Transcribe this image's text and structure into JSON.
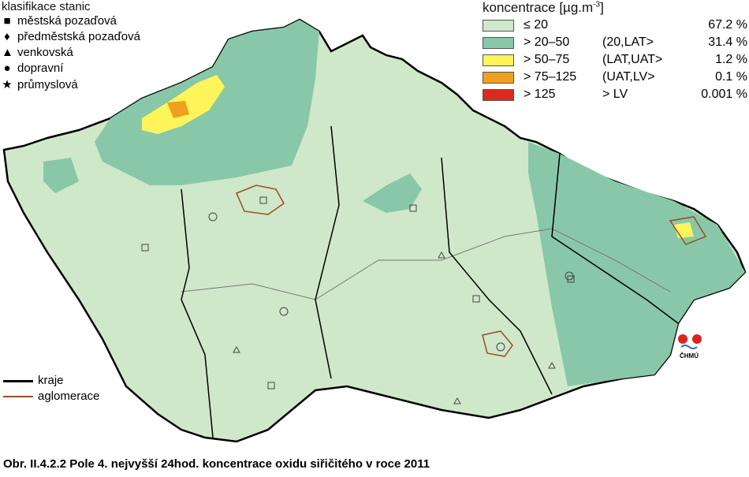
{
  "classification": {
    "title": "klasifikace stanic",
    "items": [
      {
        "icon": "square-icon",
        "glyph": "■",
        "label": "městská pozaďová"
      },
      {
        "icon": "diamond-icon",
        "glyph": "♦",
        "label": "předměstská pozaďová"
      },
      {
        "icon": "triangle-icon",
        "glyph": "▲",
        "label": "venkovská"
      },
      {
        "icon": "circle-icon",
        "glyph": "●",
        "label": "dopravní"
      },
      {
        "icon": "star-icon",
        "glyph": "★",
        "label": "průmyslová"
      }
    ]
  },
  "legend": {
    "title": "koncentrace [µg.m",
    "title_sup": "-3",
    "title_end": "]",
    "classes": [
      {
        "range": "≤ 20",
        "category": "",
        "share": "67.2 %",
        "color": "#cfe8c9"
      },
      {
        "range": "> 20–50",
        "category": "(20,LAT>",
        "share": "31.4 %",
        "color": "#88c8a8"
      },
      {
        "range": "> 50–75",
        "category": "(LAT,UAT>",
        "share": "1.2 %",
        "color": "#fff45a"
      },
      {
        "range": "> 75–125",
        "category": "(UAT,LV>",
        "share": "0.1 %",
        "color": "#f0a020"
      },
      {
        "range": "> 125",
        "category": "> LV",
        "share": "0.001 %",
        "color": "#dd2a1e"
      }
    ]
  },
  "boundaries": [
    {
      "label": "kraje",
      "color": "#000000"
    },
    {
      "label": "aglomerace",
      "color": "#9b4a2a"
    }
  ],
  "logo": "ČHMÚ",
  "caption": "Obr. II.4.2.2  Pole 4. nejvyšší 24hod. koncentrace oxidu siřičitého v roce 2011"
}
